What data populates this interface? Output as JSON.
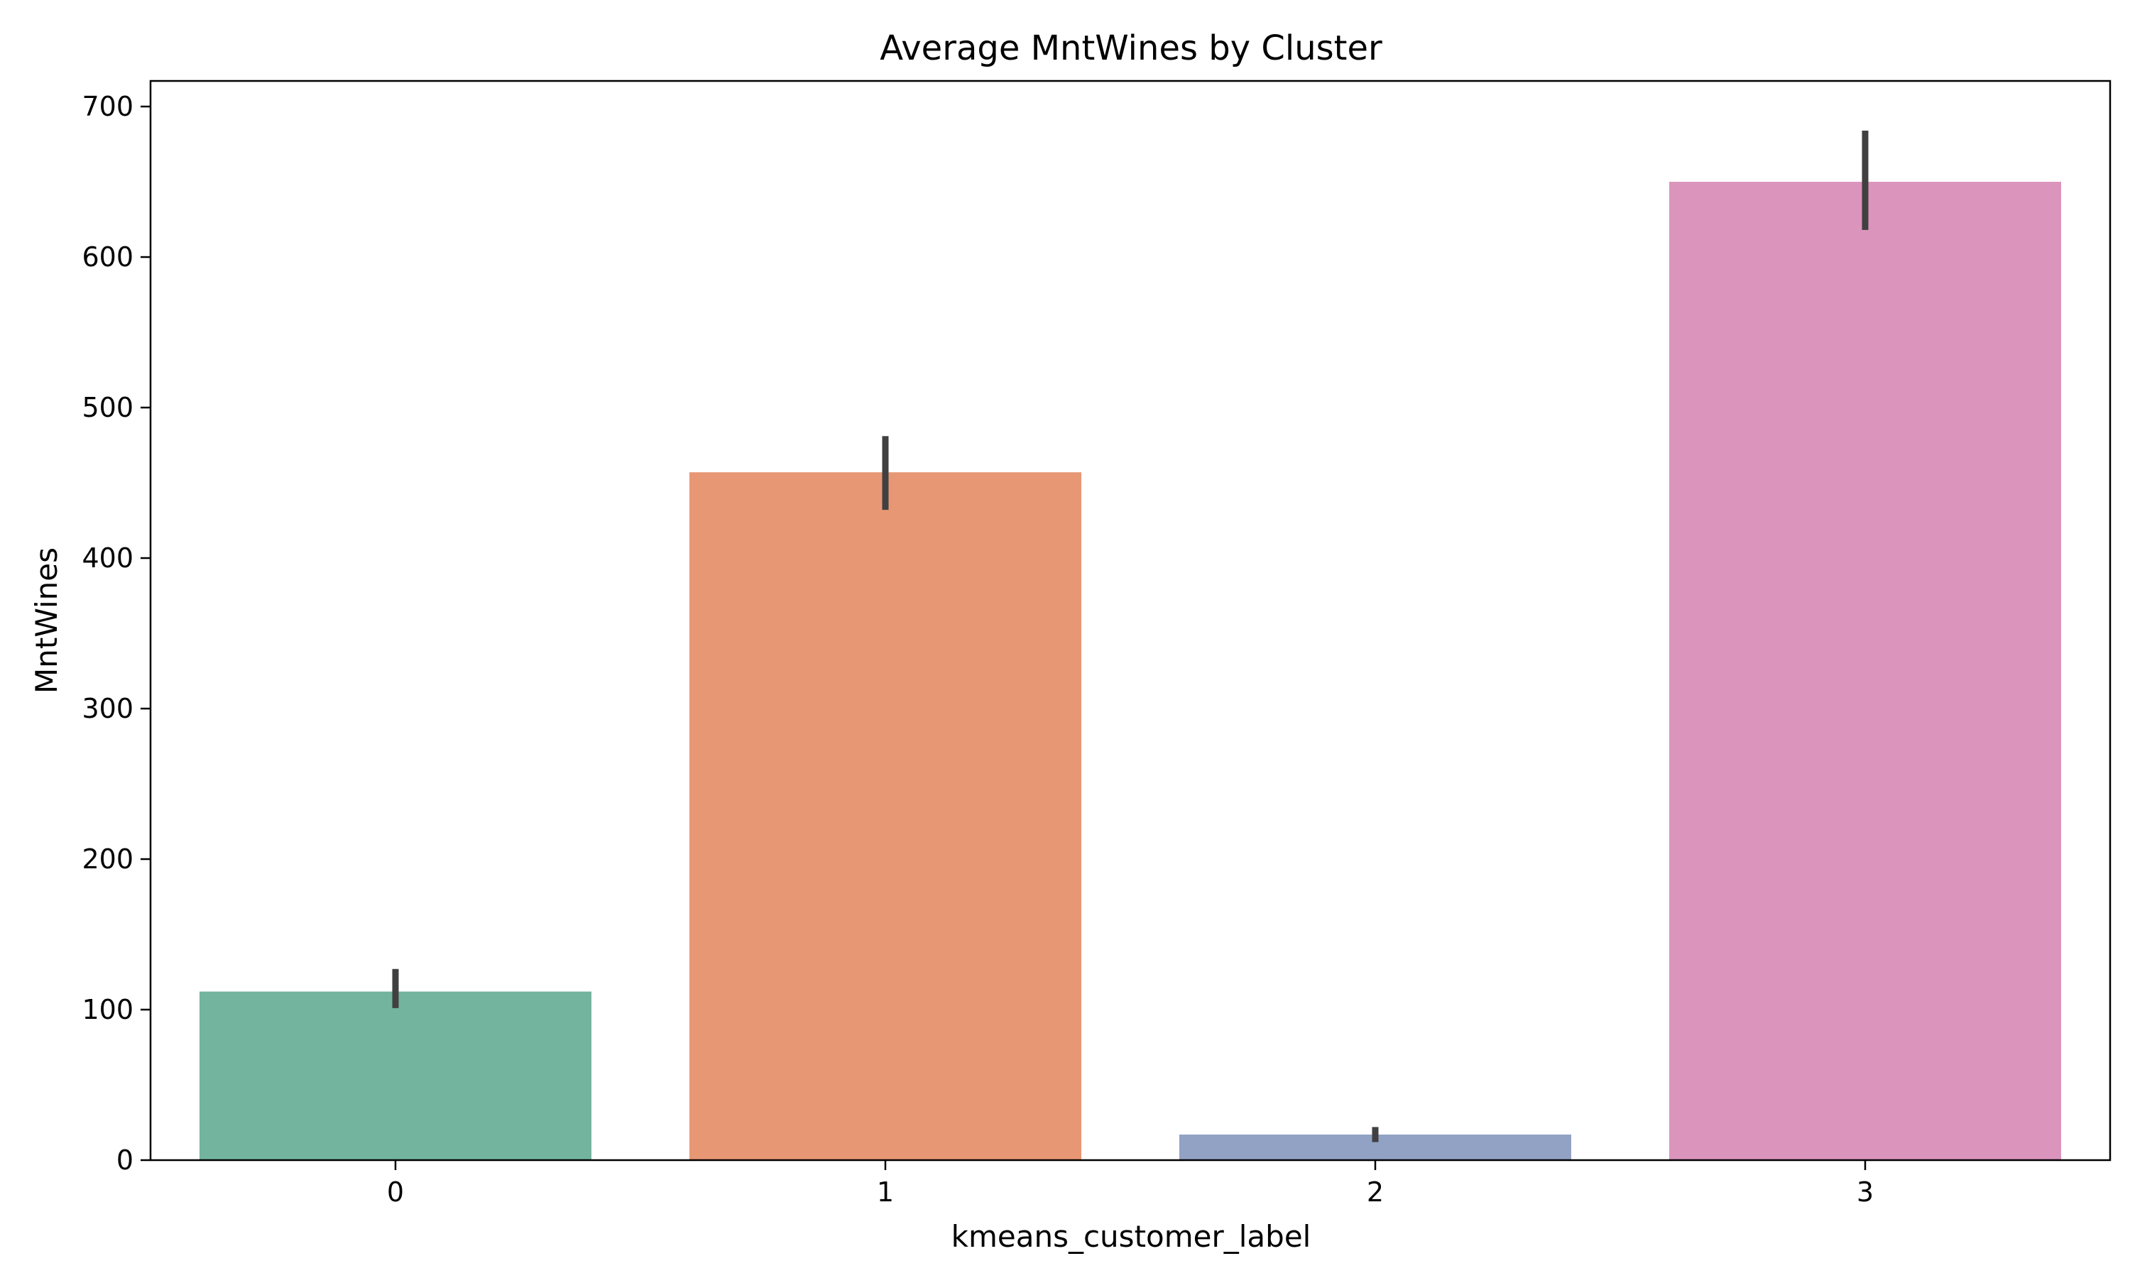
{
  "chart_data": {
    "type": "bar",
    "title": "Average MntWines by Cluster",
    "xlabel": "kmeans_customer_label",
    "ylabel": "MntWines",
    "categories": [
      "0",
      "1",
      "2",
      "3"
    ],
    "values": [
      112,
      457,
      17,
      650
    ],
    "error_low": [
      101,
      432,
      12,
      618
    ],
    "error_high": [
      127,
      481,
      22,
      684
    ],
    "colors": [
      "#73b49f",
      "#e89774",
      "#92a2c4",
      "#db95bd"
    ],
    "error_color": "#404040",
    "ylim": [
      0,
      717
    ],
    "yticks": [
      0,
      100,
      200,
      300,
      400,
      500,
      600,
      700
    ],
    "grid": false,
    "legend": "none"
  }
}
